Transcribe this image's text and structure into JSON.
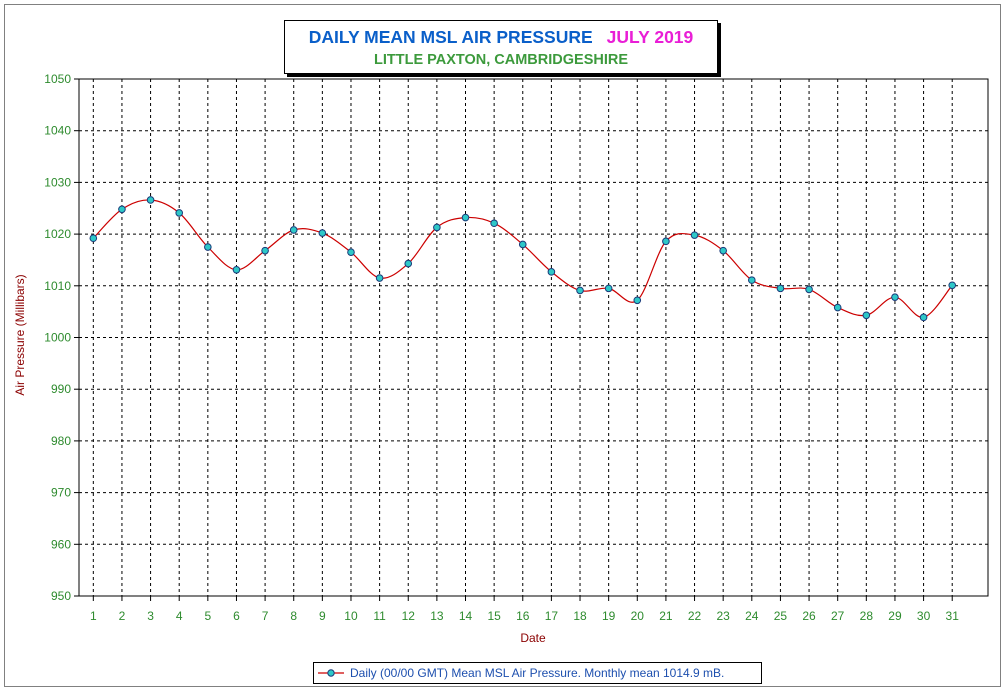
{
  "title": {
    "main": "DAILY MEAN MSL AIR PRESSURE",
    "month": "JULY 2019",
    "subtitle": "LITTLE PAXTON, CAMBRIDGESHIRE"
  },
  "legend": {
    "label": "Daily (00/00 GMT) Mean MSL Air Pressure. Monthly mean 1014.9 mB."
  },
  "colors": {
    "line": "#cc0000",
    "marker_fill": "#2ec8c8",
    "marker_stroke": "#1a3a7a",
    "tick_label": "#2e8b2e",
    "axis_title": "#8b0000",
    "grid": "#000000"
  },
  "chart_data": {
    "type": "line",
    "xlabel": "Date",
    "ylabel": "Air Pressure (Millibars)",
    "ylim": [
      950,
      1050
    ],
    "yticks": [
      950,
      960,
      970,
      980,
      990,
      1000,
      1010,
      1020,
      1030,
      1040,
      1050
    ],
    "categories": [
      "1",
      "2",
      "3",
      "4",
      "5",
      "6",
      "7",
      "8",
      "9",
      "10",
      "11",
      "12",
      "13",
      "14",
      "15",
      "16",
      "17",
      "18",
      "19",
      "20",
      "21",
      "22",
      "23",
      "24",
      "25",
      "26",
      "27",
      "28",
      "29",
      "30",
      "31"
    ],
    "grid": "dashed",
    "legend_position": "bottom",
    "series": [
      {
        "name": "Daily (00/00 GMT) Mean MSL Air Pressure. Monthly mean 1014.9 mB.",
        "values": [
          1019.2,
          1024.8,
          1026.6,
          1024.1,
          1017.5,
          1013.1,
          1016.8,
          1020.8,
          1020.2,
          1016.5,
          1011.5,
          1014.3,
          1021.3,
          1023.2,
          1022.1,
          1018.0,
          1012.7,
          1009.1,
          1009.5,
          1007.2,
          1018.6,
          1019.8,
          1016.8,
          1011.1,
          1009.5,
          1009.3,
          1005.8,
          1004.3,
          1007.8,
          1003.9,
          1010.1
        ]
      }
    ]
  }
}
